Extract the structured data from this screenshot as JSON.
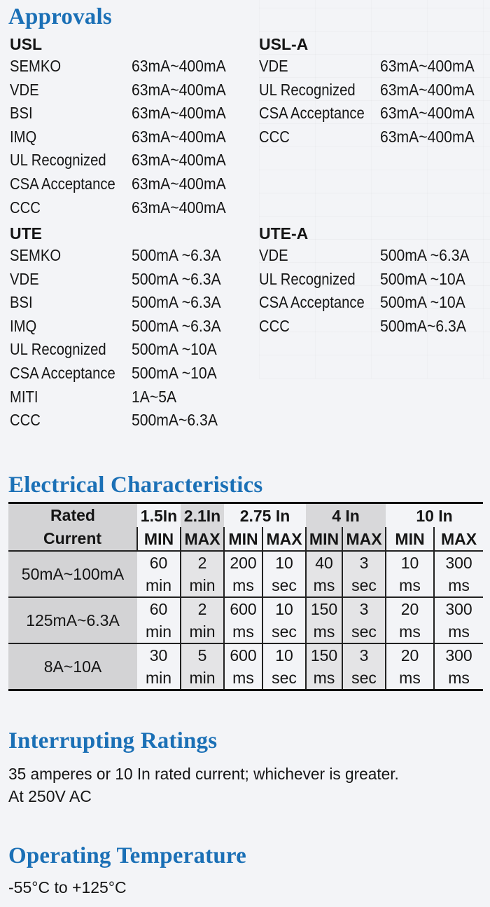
{
  "approvals": {
    "title": "Approvals",
    "usl": {
      "title": "USL",
      "rows": [
        {
          "name": "SEMKO",
          "value": "63mA~400mA"
        },
        {
          "name": "VDE",
          "value": "63mA~400mA"
        },
        {
          "name": "BSI",
          "value": "63mA~400mA"
        },
        {
          "name": "IMQ",
          "value": "63mA~400mA"
        },
        {
          "name": "UL Recognized",
          "value": "63mA~400mA"
        },
        {
          "name": "CSA Acceptance",
          "value": "63mA~400mA"
        },
        {
          "name": "CCC",
          "value": "63mA~400mA"
        }
      ]
    },
    "usl_a": {
      "title": "USL-A",
      "rows": [
        {
          "name": "VDE",
          "value": "63mA~400mA"
        },
        {
          "name": "UL Recognized",
          "value": "63mA~400mA"
        },
        {
          "name": "CSA Acceptance",
          "value": "63mA~400mA"
        },
        {
          "name": "CCC",
          "value": "63mA~400mA"
        }
      ]
    },
    "ute": {
      "title": "UTE",
      "rows": [
        {
          "name": "SEMKO",
          "value": "500mA ~6.3A"
        },
        {
          "name": "VDE",
          "value": "500mA ~6.3A"
        },
        {
          "name": "BSI",
          "value": "500mA ~6.3A"
        },
        {
          "name": "IMQ",
          "value": "500mA ~6.3A"
        },
        {
          "name": "UL Recognized",
          "value": "500mA ~10A"
        },
        {
          "name": "CSA Acceptance",
          "value": "500mA ~10A"
        },
        {
          "name": "MITI",
          "value": "1A~5A"
        },
        {
          "name": "CCC",
          "value": "500mA~6.3A"
        }
      ]
    },
    "ute_a": {
      "title": "UTE-A",
      "rows": [
        {
          "name": "VDE",
          "value": "500mA ~6.3A"
        },
        {
          "name": "UL Recognized",
          "value": "500mA ~10A"
        },
        {
          "name": "CSA Acceptance",
          "value": "500mA ~10A"
        },
        {
          "name": "CCC",
          "value": "500mA~6.3A"
        }
      ]
    }
  },
  "electrical": {
    "title": "Electrical Characteristics",
    "rated_line1": "Rated",
    "rated_line2": "Current",
    "groups": [
      "1.5In",
      "2.1In",
      "2.75 In",
      "4 In",
      "10 In"
    ],
    "sub": [
      "MIN",
      "MAX",
      "MIN",
      "MAX",
      "MIN",
      "MAX",
      "MIN",
      "MAX"
    ],
    "rows": [
      {
        "label": "50mA~100mA",
        "top": [
          "60",
          "2",
          "200",
          "10",
          "40",
          "3",
          "10",
          "300"
        ],
        "bottom": [
          "min",
          "min",
          "ms",
          "sec",
          "ms",
          "sec",
          "ms",
          "ms"
        ]
      },
      {
        "label": "125mA~6.3A",
        "top": [
          "60",
          "2",
          "600",
          "10",
          "150",
          "3",
          "20",
          "300"
        ],
        "bottom": [
          "min",
          "min",
          "ms",
          "sec",
          "ms",
          "sec",
          "ms",
          "ms"
        ]
      },
      {
        "label": "8A~10A",
        "top": [
          "30",
          "5",
          "600",
          "10",
          "150",
          "3",
          "20",
          "300"
        ],
        "bottom": [
          "min",
          "min",
          "ms",
          "sec",
          "ms",
          "sec",
          "ms",
          "ms"
        ]
      }
    ]
  },
  "interrupting": {
    "title": "Interrupting Ratings",
    "line1": "35 amperes or 10 In rated current; whichever is greater.",
    "line2": "At 250V AC"
  },
  "temperature": {
    "title": "Operating Temperature",
    "line1": "-55°C to +125°C"
  }
}
